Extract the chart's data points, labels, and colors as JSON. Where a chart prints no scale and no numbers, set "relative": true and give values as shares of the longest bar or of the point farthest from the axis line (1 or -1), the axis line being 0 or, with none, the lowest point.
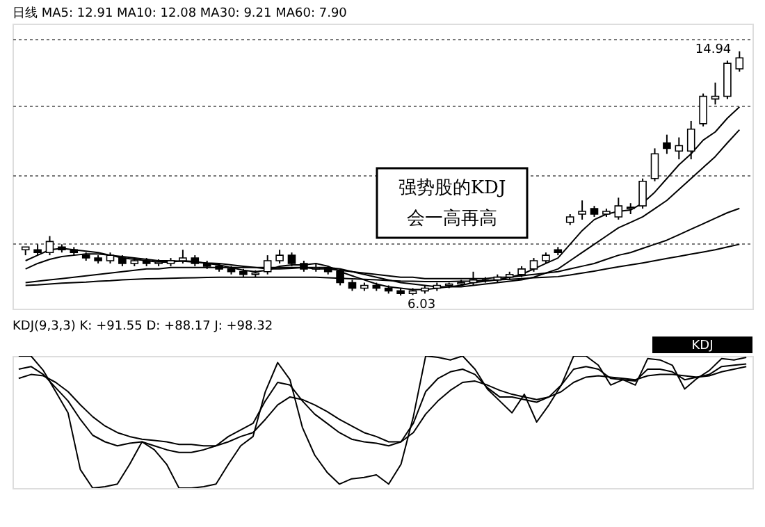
{
  "chart_data": [
    {
      "type": "candlestick",
      "title": "日线 MA5: 12.91 MA10: 12.08 MA30: 9.21 MA60: 7.90",
      "categories": [
        null,
        null,
        null,
        null,
        null,
        null,
        null,
        null,
        null,
        null,
        null,
        null,
        null,
        null,
        null,
        null,
        null,
        null,
        null,
        null,
        null,
        null,
        null,
        null,
        null,
        null,
        null,
        null,
        null,
        null,
        null,
        null,
        null,
        null,
        null,
        null,
        null,
        null,
        null,
        null,
        null,
        null,
        null,
        null,
        null,
        null,
        null,
        null,
        null,
        null,
        null,
        null,
        null,
        null,
        null,
        null,
        null,
        null,
        null,
        null
      ],
      "ohlc": [
        [
          7.7,
          7.8,
          7.5,
          7.8
        ],
        [
          7.7,
          7.9,
          7.5,
          7.6
        ],
        [
          7.6,
          8.2,
          7.5,
          8.0
        ],
        [
          7.8,
          7.9,
          7.6,
          7.7
        ],
        [
          7.7,
          7.8,
          7.5,
          7.6
        ],
        [
          7.5,
          7.6,
          7.3,
          7.4
        ],
        [
          7.4,
          7.5,
          7.2,
          7.3
        ],
        [
          7.3,
          7.6,
          7.2,
          7.5
        ],
        [
          7.4,
          7.5,
          7.1,
          7.2
        ],
        [
          7.2,
          7.4,
          7.1,
          7.3
        ],
        [
          7.3,
          7.4,
          7.1,
          7.2
        ],
        [
          7.2,
          7.35,
          7.1,
          7.25
        ],
        [
          7.2,
          7.4,
          7.1,
          7.3
        ],
        [
          7.3,
          7.7,
          7.2,
          7.4
        ],
        [
          7.4,
          7.5,
          7.1,
          7.2
        ],
        [
          7.2,
          7.3,
          7.0,
          7.1
        ],
        [
          7.1,
          7.2,
          6.9,
          7.0
        ],
        [
          7.0,
          7.1,
          6.8,
          6.9
        ],
        [
          6.9,
          7.0,
          6.7,
          6.8
        ],
        [
          6.8,
          6.95,
          6.7,
          6.85
        ],
        [
          6.9,
          7.5,
          6.8,
          7.3
        ],
        [
          7.3,
          7.7,
          7.2,
          7.5
        ],
        [
          7.5,
          7.6,
          7.1,
          7.2
        ],
        [
          7.2,
          7.3,
          6.9,
          7.0
        ],
        [
          7.0,
          7.2,
          6.9,
          7.05
        ],
        [
          7.05,
          7.1,
          6.8,
          6.9
        ],
        [
          6.9,
          7.0,
          6.4,
          6.5
        ],
        [
          6.5,
          6.6,
          6.2,
          6.3
        ],
        [
          6.3,
          6.5,
          6.2,
          6.4
        ],
        [
          6.4,
          6.5,
          6.2,
          6.3
        ],
        [
          6.3,
          6.4,
          6.1,
          6.2
        ],
        [
          6.2,
          6.3,
          6.03,
          6.1
        ],
        [
          6.1,
          6.3,
          6.05,
          6.2
        ],
        [
          6.2,
          6.4,
          6.1,
          6.3
        ],
        [
          6.3,
          6.5,
          6.2,
          6.4
        ],
        [
          6.4,
          6.5,
          6.3,
          6.45
        ],
        [
          6.45,
          6.6,
          6.4,
          6.5
        ],
        [
          6.5,
          6.9,
          6.4,
          6.6
        ],
        [
          6.6,
          6.7,
          6.5,
          6.6
        ],
        [
          6.6,
          6.8,
          6.5,
          6.7
        ],
        [
          6.7,
          6.9,
          6.6,
          6.8
        ],
        [
          6.8,
          7.1,
          6.7,
          7.0
        ],
        [
          7.0,
          7.4,
          6.9,
          7.3
        ],
        [
          7.3,
          7.6,
          7.2,
          7.5
        ],
        [
          7.7,
          7.8,
          7.5,
          7.6
        ],
        [
          8.7,
          9.0,
          8.6,
          8.9
        ],
        [
          9.0,
          9.5,
          8.8,
          9.1
        ],
        [
          9.2,
          9.3,
          8.9,
          9.0
        ],
        [
          9.0,
          9.2,
          8.9,
          9.1
        ],
        [
          8.9,
          9.6,
          8.8,
          9.3
        ],
        [
          9.2,
          9.4,
          9.0,
          9.25
        ],
        [
          9.3,
          10.3,
          9.2,
          10.2
        ],
        [
          10.3,
          11.4,
          10.2,
          11.2
        ],
        [
          11.6,
          11.9,
          11.2,
          11.4
        ],
        [
          11.3,
          11.8,
          11.0,
          11.5
        ],
        [
          11.3,
          12.4,
          11.0,
          12.1
        ],
        [
          12.3,
          13.4,
          12.2,
          13.3
        ],
        [
          13.2,
          13.8,
          13.0,
          13.3
        ],
        [
          13.3,
          14.6,
          13.2,
          14.5
        ],
        [
          14.3,
          14.94,
          14.2,
          14.7
        ]
      ],
      "colors": [
        "#ffffff",
        "#000000",
        "#ffffff",
        "#000000",
        "#000000",
        "#000000",
        "#000000",
        "#ffffff",
        "#000000",
        "#ffffff",
        "#000000",
        "#ffffff",
        "#ffffff",
        "#ffffff",
        "#000000",
        "#000000",
        "#000000",
        "#000000",
        "#000000",
        "#ffffff",
        "#ffffff",
        "#ffffff",
        "#000000",
        "#000000",
        "#ffffff",
        "#000000",
        "#000000",
        "#000000",
        "#ffffff",
        "#000000",
        "#000000",
        "#000000",
        "#ffffff",
        "#ffffff",
        "#ffffff",
        "#ffffff",
        "#ffffff",
        "#ffffff",
        "#000000",
        "#ffffff",
        "#ffffff",
        "#ffffff",
        "#ffffff",
        "#ffffff",
        "#000000",
        "#ffffff",
        "#ffffff",
        "#000000",
        "#ffffff",
        "#ffffff",
        "#ffffff",
        "#ffffff",
        "#ffffff",
        "#000000",
        "#ffffff",
        "#ffffff",
        "#ffffff",
        "#ffffff",
        "#ffffff",
        "#ffffff"
      ],
      "series": [
        {
          "type": "line",
          "color": "#000000",
          "values": [
            7.3,
            7.5,
            7.7,
            7.75,
            7.7,
            7.65,
            7.6,
            7.5,
            7.4,
            7.35,
            7.3,
            7.25,
            7.25,
            7.3,
            7.27,
            7.2,
            7.15,
            7.05,
            6.95,
            6.9,
            6.95,
            7.1,
            7.15,
            7.15,
            7.2,
            7.1,
            6.9,
            6.75,
            6.6,
            6.45,
            6.35,
            6.3,
            6.25,
            6.25,
            6.3,
            6.35,
            6.4,
            6.5,
            6.55,
            6.6,
            6.7,
            6.8,
            7.0,
            7.2,
            7.4,
            7.9,
            8.4,
            8.8,
            9.0,
            9.1,
            9.15,
            9.4,
            9.8,
            10.3,
            10.8,
            11.2,
            11.7,
            12.0,
            12.5,
            12.91
          ]
        },
        {
          "type": "line",
          "color": "#000000",
          "values": [
            7.0,
            7.2,
            7.35,
            7.45,
            7.5,
            7.55,
            7.55,
            7.5,
            7.45,
            7.4,
            7.35,
            7.3,
            7.3,
            7.28,
            7.25,
            7.22,
            7.2,
            7.15,
            7.1,
            7.05,
            7.0,
            7.0,
            7.02,
            7.05,
            7.05,
            7.05,
            7.0,
            6.9,
            6.8,
            6.7,
            6.6,
            6.5,
            6.45,
            6.4,
            6.35,
            6.35,
            6.35,
            6.4,
            6.45,
            6.5,
            6.55,
            6.6,
            6.7,
            6.85,
            7.0,
            7.3,
            7.6,
            7.9,
            8.2,
            8.5,
            8.7,
            8.9,
            9.2,
            9.5,
            9.9,
            10.3,
            10.7,
            11.1,
            11.6,
            12.08
          ]
        },
        {
          "type": "line",
          "color": "#000000",
          "values": [
            6.5,
            6.55,
            6.6,
            6.65,
            6.7,
            6.75,
            6.8,
            6.85,
            6.9,
            6.95,
            7.0,
            7.0,
            7.05,
            7.05,
            7.05,
            7.05,
            7.05,
            7.05,
            7.05,
            7.05,
            7.05,
            7.05,
            7.05,
            7.05,
            7.0,
            7.0,
            6.95,
            6.9,
            6.85,
            6.8,
            6.75,
            6.7,
            6.7,
            6.65,
            6.65,
            6.65,
            6.65,
            6.65,
            6.65,
            6.7,
            6.7,
            6.75,
            6.8,
            6.85,
            6.9,
            7.0,
            7.1,
            7.2,
            7.35,
            7.5,
            7.6,
            7.75,
            7.9,
            8.05,
            8.25,
            8.45,
            8.65,
            8.85,
            9.05,
            9.21
          ]
        },
        {
          "type": "line",
          "color": "#000000",
          "values": [
            6.4,
            6.42,
            6.45,
            6.48,
            6.5,
            6.52,
            6.55,
            6.57,
            6.6,
            6.62,
            6.64,
            6.65,
            6.66,
            6.67,
            6.68,
            6.69,
            6.7,
            6.7,
            6.7,
            6.7,
            6.7,
            6.7,
            6.7,
            6.7,
            6.7,
            6.68,
            6.66,
            6.64,
            6.62,
            6.6,
            6.58,
            6.56,
            6.55,
            6.54,
            6.54,
            6.54,
            6.55,
            6.56,
            6.58,
            6.6,
            6.62,
            6.65,
            6.68,
            6.7,
            6.72,
            6.78,
            6.85,
            6.92,
            7.0,
            7.08,
            7.15,
            7.22,
            7.3,
            7.38,
            7.46,
            7.54,
            7.62,
            7.7,
            7.8,
            7.9
          ]
        }
      ],
      "ylim": [
        5.55,
        15.95
      ],
      "yticks": [
        {
          "value": 7.93,
          "label": null
        },
        {
          "value": 10.44,
          "label": null
        },
        {
          "value": 12.95,
          "label": null
        },
        {
          "value": 15.4,
          "label": null
        }
      ],
      "grid": "y",
      "tick_labels": false,
      "annotations": [
        "14.94",
        "6.03",
        "强势股的KDJ\n会一高再高"
      ]
    },
    {
      "type": "line",
      "title": "KDJ(9,3,3) K: +91.55 D: +88.17 J: +98.32",
      "categories": [
        null,
        null,
        null,
        null,
        null,
        null,
        null,
        null,
        null,
        null,
        null,
        null,
        null,
        null,
        null,
        null,
        null,
        null,
        null,
        null,
        null,
        null,
        null,
        null,
        null,
        null,
        null,
        null,
        null,
        null,
        null,
        null,
        null,
        null,
        null,
        null,
        null,
        null,
        null,
        null,
        null,
        null,
        null,
        null,
        null,
        null,
        null,
        null,
        null,
        null,
        null,
        null,
        null,
        null,
        null,
        null,
        null,
        null,
        null,
        null
      ],
      "series": [
        {
          "color": "#000000",
          "values": [
            0.9,
            0.92,
            0.86,
            0.76,
            0.66,
            0.52,
            0.4,
            0.35,
            0.32,
            0.34,
            0.35,
            0.32,
            0.29,
            0.27,
            0.27,
            0.29,
            0.32,
            0.39,
            0.44,
            0.49,
            0.66,
            0.8,
            0.78,
            0.66,
            0.56,
            0.49,
            0.42,
            0.37,
            0.35,
            0.34,
            0.32,
            0.35,
            0.49,
            0.73,
            0.83,
            0.88,
            0.9,
            0.86,
            0.76,
            0.69,
            0.69,
            0.67,
            0.65,
            0.69,
            0.78,
            0.9,
            0.92,
            0.9,
            0.83,
            0.82,
            0.81,
            0.9,
            0.9,
            0.88,
            0.82,
            0.84,
            0.86,
            0.92,
            0.93,
            0.94
          ]
        },
        {
          "color": "#000000",
          "values": [
            0.83,
            0.86,
            0.85,
            0.8,
            0.73,
            0.63,
            0.54,
            0.47,
            0.42,
            0.39,
            0.37,
            0.36,
            0.35,
            0.33,
            0.33,
            0.32,
            0.32,
            0.35,
            0.39,
            0.42,
            0.52,
            0.63,
            0.69,
            0.67,
            0.63,
            0.58,
            0.52,
            0.47,
            0.42,
            0.39,
            0.35,
            0.35,
            0.42,
            0.56,
            0.66,
            0.74,
            0.8,
            0.81,
            0.78,
            0.74,
            0.71,
            0.69,
            0.67,
            0.69,
            0.73,
            0.8,
            0.84,
            0.85,
            0.84,
            0.83,
            0.82,
            0.85,
            0.86,
            0.86,
            0.85,
            0.84,
            0.85,
            0.88,
            0.9,
            0.92
          ]
        },
        {
          "color": "#000000",
          "values": [
            1,
            1,
            0.89,
            0.73,
            0.57,
            0.14,
            0,
            0.01,
            0.03,
            0.18,
            0.35,
            0.29,
            0.18,
            0,
            0,
            0.01,
            0.03,
            0.18,
            0.32,
            0.39,
            0.73,
            0.95,
            0.82,
            0.46,
            0.25,
            0.12,
            0.03,
            0.07,
            0.08,
            0.1,
            0.03,
            0.18,
            0.54,
            1,
            0.99,
            0.97,
            1,
            0.9,
            0.75,
            0.66,
            0.57,
            0.71,
            0.5,
            0.63,
            0.78,
            1,
            1,
            0.93,
            0.78,
            0.82,
            0.78,
            0.98,
            0.97,
            0.93,
            0.75,
            0.83,
            0.89,
            0.98,
            0.97,
            0.99
          ]
        }
      ],
      "relative": true,
      "tick_labels": false,
      "annotations": [
        "KDJ"
      ]
    }
  ]
}
